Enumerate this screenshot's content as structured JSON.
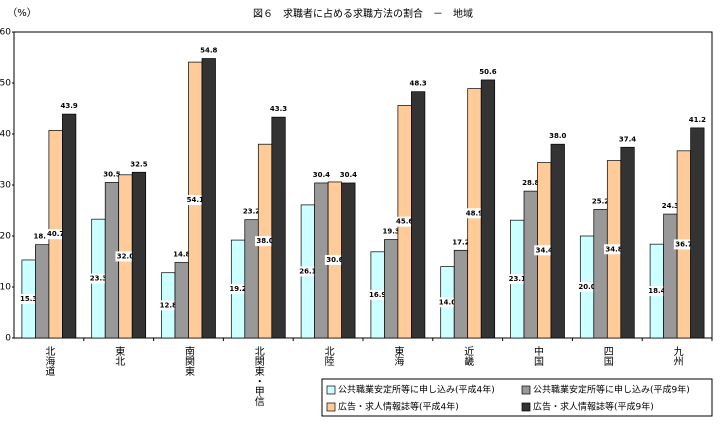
{
  "chart_data": {
    "type": "bar",
    "title": "図６　求職者に占める求職方法の割合　－　地域",
    "y_label": "（%）",
    "categories": [
      "北海道",
      "東北",
      "南関東",
      "北関東・甲信",
      "北陸",
      "東海",
      "近畿",
      "中国",
      "四国",
      "九州"
    ],
    "ylim": [
      0,
      60
    ],
    "yticks": [
      0,
      10,
      20,
      30,
      40,
      50,
      60
    ],
    "series": [
      {
        "name": "公共職業安定所等に申し込み(平成4年)",
        "color": "#ccffff",
        "values": [
          15.3,
          23.3,
          12.8,
          19.2,
          26.1,
          16.9,
          14.0,
          23.1,
          20.0,
          18.4
        ],
        "value_labels": [
          "15.3",
          "23.3",
          "12.8",
          "19.2",
          "26.1",
          "16.9",
          "14.0",
          "23.1",
          "20.0",
          "18.4"
        ]
      },
      {
        "name": "公共職業安定所等に申し込み(平成9年)",
        "color": "#999999",
        "values": [
          18.3,
          30.5,
          14.8,
          23.2,
          30.4,
          19.3,
          17.2,
          28.8,
          25.2,
          24.3
        ],
        "value_labels": [
          "18.3",
          "30.5",
          "14.8",
          "23.2",
          "30.4",
          "19.3",
          "17.2",
          "28.8",
          "25.2",
          "24.3"
        ]
      },
      {
        "name": "広告・求人情報誌等(平成4年)",
        "color": "#ffcc99",
        "values": [
          40.7,
          32.0,
          54.1,
          38.0,
          30.6,
          45.6,
          48.9,
          34.4,
          34.8,
          36.7
        ],
        "value_labels": [
          "40.7",
          "32.0",
          "54.1",
          "38.0",
          "30.6",
          "45.6",
          "48.9",
          "34.4",
          "34.8",
          "36.7"
        ]
      },
      {
        "name": "広告・求人情報誌等(平成9年)",
        "color": "#333333",
        "values": [
          43.9,
          32.5,
          54.8,
          43.3,
          30.4,
          48.3,
          50.6,
          38.0,
          37.4,
          41.2
        ],
        "value_labels": [
          "43.9",
          "32.5",
          "54.8",
          "43.3",
          "30.4",
          "48.3",
          "50.6",
          "38.0",
          "37.4",
          "41.2"
        ]
      }
    ]
  }
}
